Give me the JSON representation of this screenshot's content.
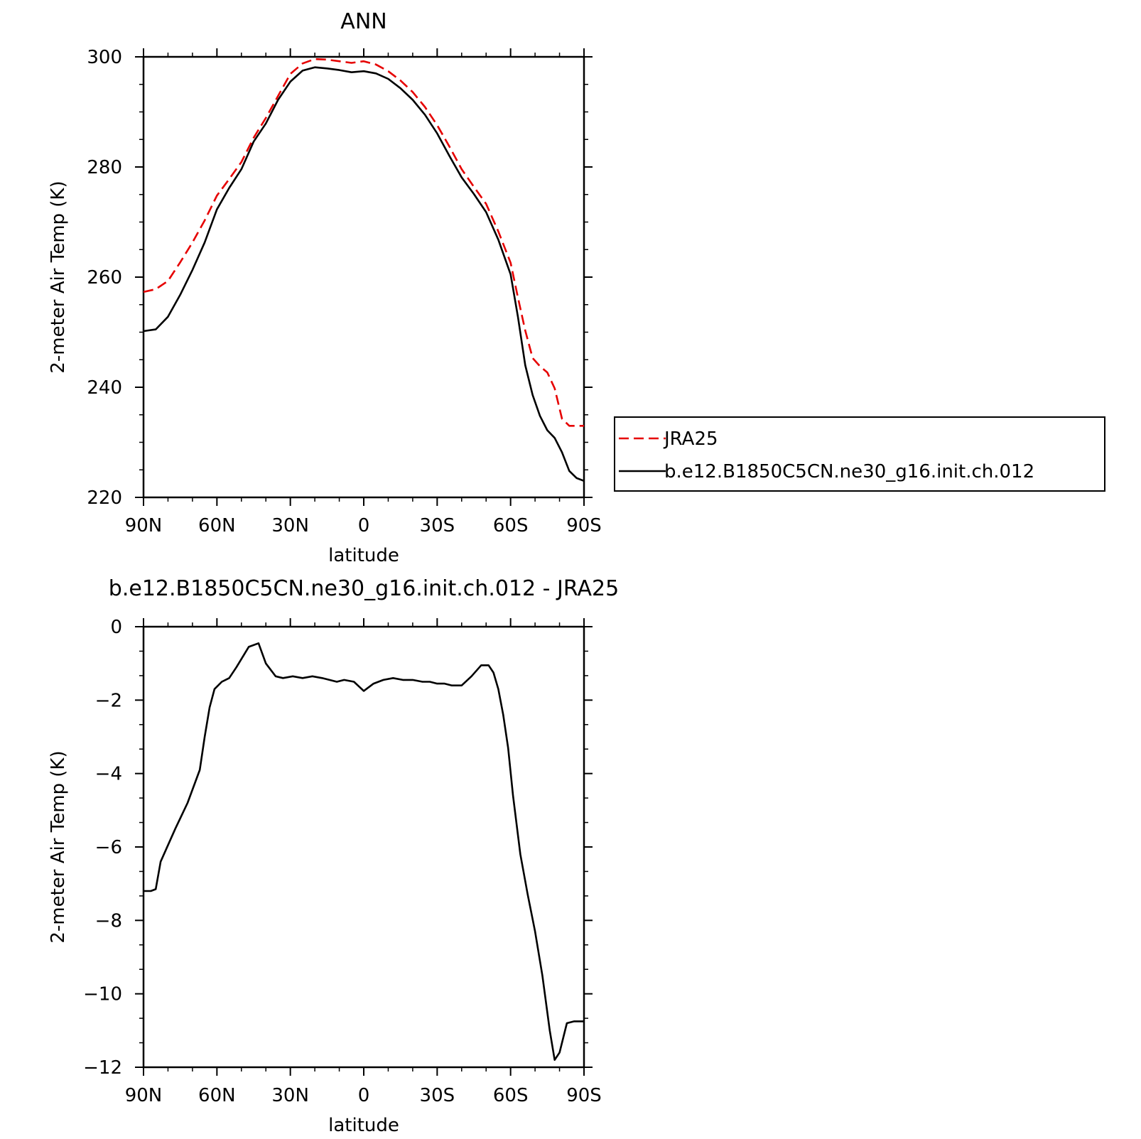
{
  "chart_data": [
    {
      "type": "line",
      "title": "ANN",
      "xlabel": "latitude",
      "ylabel": "2-meter Air Temp (K)",
      "xlim": [
        90,
        -90
      ],
      "ylim": [
        220,
        300
      ],
      "xticks": [
        {
          "value": 90,
          "label": "90N"
        },
        {
          "value": 60,
          "label": "60N"
        },
        {
          "value": 30,
          "label": "30N"
        },
        {
          "value": 0,
          "label": "0"
        },
        {
          "value": -30,
          "label": "30S"
        },
        {
          "value": -60,
          "label": "60S"
        },
        {
          "value": -90,
          "label": "90S"
        }
      ],
      "yticks": [
        {
          "value": 220,
          "label": "220"
        },
        {
          "value": 240,
          "label": "240"
        },
        {
          "value": 260,
          "label": "260"
        },
        {
          "value": 280,
          "label": "280"
        },
        {
          "value": 300,
          "label": "300"
        }
      ],
      "legend_position": "right",
      "series": [
        {
          "name": "JRA25",
          "color": "#e60000",
          "dash": "dashed",
          "x": [
            90,
            85,
            80,
            75,
            70,
            65,
            60,
            55,
            50,
            45,
            40,
            35,
            30,
            25,
            20,
            15,
            10,
            5,
            0,
            -5,
            -10,
            -15,
            -20,
            -25,
            -30,
            -35,
            -40,
            -45,
            -50,
            -55,
            -60,
            -63,
            -66,
            -69,
            -72,
            -75,
            -78,
            -81,
            -84,
            -87,
            -90
          ],
          "y": [
            257.3,
            257.8,
            259.3,
            262.7,
            266.3,
            270.3,
            274.8,
            277.8,
            280.9,
            285.3,
            288.9,
            292.9,
            296.9,
            298.8,
            299.6,
            299.5,
            299.2,
            298.9,
            299.2,
            298.6,
            297.4,
            295.7,
            293.6,
            290.9,
            287.6,
            283.7,
            279.6,
            276.4,
            273.3,
            268.3,
            262.6,
            256.3,
            250.3,
            245.3,
            243.8,
            242.7,
            239.8,
            234.3,
            233.0,
            233.0,
            233.0
          ]
        },
        {
          "name": "b.e12.B1850C5CN.ne30_g16.init.ch.012",
          "color": "#000000",
          "dash": "solid",
          "x": [
            90,
            85,
            80,
            75,
            70,
            65,
            60,
            55,
            50,
            45,
            40,
            35,
            30,
            25,
            20,
            15,
            10,
            5,
            0,
            -5,
            -10,
            -15,
            -20,
            -25,
            -30,
            -35,
            -40,
            -45,
            -50,
            -55,
            -60,
            -63,
            -66,
            -69,
            -72,
            -75,
            -78,
            -81,
            -84,
            -87,
            -90
          ],
          "y": [
            250.2,
            250.5,
            252.8,
            256.8,
            261.3,
            266.3,
            272.3,
            276.2,
            279.6,
            284.6,
            287.9,
            292.2,
            295.5,
            297.5,
            298.1,
            297.9,
            297.6,
            297.2,
            297.4,
            297.0,
            296.0,
            294.3,
            292.2,
            289.5,
            286.1,
            282.0,
            278.1,
            275.1,
            271.8,
            266.8,
            260.5,
            252.8,
            244.0,
            238.6,
            234.8,
            232.2,
            230.8,
            228.2,
            224.8,
            223.5,
            223.0
          ]
        }
      ]
    },
    {
      "type": "line",
      "title": "b.e12.B1850C5CN.ne30_g16.init.ch.012 - JRA25",
      "xlabel": "latitude",
      "ylabel": "2-meter Air Temp (K)",
      "xlim": [
        90,
        -90
      ],
      "ylim": [
        -12,
        0
      ],
      "xticks": [
        {
          "value": 90,
          "label": "90N"
        },
        {
          "value": 60,
          "label": "60N"
        },
        {
          "value": 30,
          "label": "30N"
        },
        {
          "value": 0,
          "label": "0"
        },
        {
          "value": -30,
          "label": "30S"
        },
        {
          "value": -60,
          "label": "60S"
        },
        {
          "value": -90,
          "label": "90S"
        }
      ],
      "yticks": [
        {
          "value": 0,
          "label": "0"
        },
        {
          "value": -2,
          "label": "−2"
        },
        {
          "value": -4,
          "label": "−4"
        },
        {
          "value": -6,
          "label": "−6"
        },
        {
          "value": -8,
          "label": "−8"
        },
        {
          "value": -10,
          "label": "−10"
        },
        {
          "value": -12,
          "label": "−12"
        }
      ],
      "series": [
        {
          "color": "#000000",
          "dash": "solid",
          "x": [
            90,
            87,
            85,
            83,
            81,
            77,
            72,
            67,
            65,
            63,
            61,
            58,
            55,
            52,
            47,
            43,
            40,
            36,
            33,
            29,
            25,
            21,
            17,
            14,
            11,
            8,
            4,
            0,
            -4,
            -8,
            -12,
            -16,
            -20,
            -24,
            -27,
            -30,
            -33,
            -36,
            -40,
            -44,
            -48,
            -51,
            -53,
            -55,
            -57,
            -59,
            -61,
            -64,
            -67,
            -70,
            -73,
            -76,
            -78,
            -80,
            -83,
            -86,
            -88,
            -90
          ],
          "y": [
            -7.2,
            -7.2,
            -7.15,
            -6.4,
            -6.1,
            -5.5,
            -4.8,
            -3.9,
            -3.0,
            -2.2,
            -1.7,
            -1.5,
            -1.4,
            -1.1,
            -0.55,
            -0.45,
            -1.0,
            -1.35,
            -1.4,
            -1.35,
            -1.4,
            -1.35,
            -1.4,
            -1.45,
            -1.5,
            -1.45,
            -1.5,
            -1.75,
            -1.55,
            -1.45,
            -1.4,
            -1.45,
            -1.45,
            -1.5,
            -1.5,
            -1.55,
            -1.55,
            -1.6,
            -1.6,
            -1.35,
            -1.05,
            -1.05,
            -1.25,
            -1.7,
            -2.4,
            -3.3,
            -4.6,
            -6.2,
            -7.3,
            -8.3,
            -9.5,
            -11.0,
            -11.8,
            -11.6,
            -10.8,
            -10.75,
            -10.75,
            -10.75
          ]
        }
      ]
    }
  ]
}
